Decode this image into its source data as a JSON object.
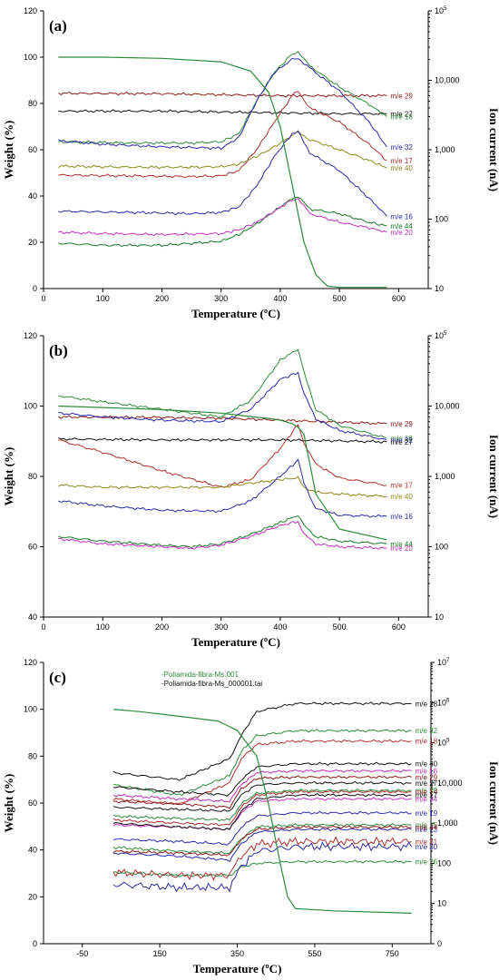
{
  "chart_data": [
    {
      "type": "line",
      "panel_label": "(a)",
      "xlabel": "Temperature (ºC)",
      "ylabel": "Weight (%)",
      "y2label": "Ion current (nA)",
      "xlim": [
        0,
        650
      ],
      "ylim": [
        0,
        120
      ],
      "y2lim": [
        10,
        100000
      ],
      "y2scale": "log",
      "xticks": [
        "0",
        "100",
        "200",
        "300",
        "400",
        "500",
        "600"
      ],
      "yticks": [
        "0",
        "20",
        "40",
        "60",
        "80",
        "100",
        "120"
      ],
      "y2ticks": [
        "10",
        "100",
        "1,000",
        "10,000",
        "10 5"
      ],
      "weight": {
        "color": "#2e8b3a",
        "x": [
          25,
          100,
          200,
          300,
          350,
          380,
          400,
          420,
          440,
          460,
          480,
          500,
          580
        ],
        "y": [
          100,
          100,
          99.5,
          98,
          94,
          85,
          70,
          45,
          20,
          6,
          1,
          0.5,
          0.5
        ]
      },
      "series": [
        {
          "name": "m/e 29",
          "color": "#8b1a1a",
          "x": [
            25,
            200,
            300,
            400,
            500,
            580
          ],
          "y": [
            6500,
            6400,
            6200,
            6000,
            6000,
            6000
          ]
        },
        {
          "name": "m/e 27",
          "color": "#111111",
          "x": [
            25,
            200,
            300,
            400,
            500,
            580
          ],
          "y": [
            3600,
            3600,
            3500,
            3400,
            3300,
            3300
          ]
        },
        {
          "name": "m/e 18",
          "color": "#2e8b3a",
          "x": [
            25,
            150,
            250,
            300,
            330,
            360,
            390,
            420,
            430,
            450,
            500,
            550,
            580
          ],
          "y": [
            1300,
            1250,
            1250,
            1300,
            1700,
            5000,
            13000,
            24000,
            26000,
            16000,
            8000,
            4500,
            3000
          ]
        },
        {
          "name": "m/e 32",
          "color": "#2b2ba8",
          "x": [
            25,
            100,
            200,
            300,
            330,
            360,
            390,
            420,
            430,
            450,
            500,
            550,
            580
          ],
          "y": [
            1350,
            1200,
            1100,
            1050,
            1500,
            5000,
            13000,
            20000,
            21000,
            15000,
            7000,
            2500,
            1100
          ]
        },
        {
          "name": "m/e 17",
          "color": "#b03030",
          "x": [
            25,
            150,
            250,
            300,
            330,
            360,
            390,
            420,
            430,
            450,
            500,
            550,
            580
          ],
          "y": [
            430,
            420,
            410,
            420,
            500,
            1000,
            2500,
            6000,
            7000,
            4000,
            2500,
            1200,
            700
          ]
        },
        {
          "name": "m/e 40",
          "color": "#8a8a1a",
          "x": [
            25,
            150,
            250,
            300,
            330,
            360,
            390,
            420,
            430,
            450,
            500,
            550,
            580
          ],
          "y": [
            580,
            560,
            560,
            570,
            620,
            800,
            1100,
            1600,
            1800,
            1400,
            1000,
            700,
            550
          ]
        },
        {
          "name": "m/e 16",
          "color": "#2b2ba8",
          "x": [
            25,
            150,
            250,
            300,
            330,
            360,
            390,
            420,
            430,
            450,
            500,
            550,
            580
          ],
          "y": [
            130,
            125,
            120,
            125,
            150,
            300,
            800,
            1700,
            1800,
            900,
            500,
            200,
            110
          ]
        },
        {
          "name": "m/e 44",
          "color": "#1a7a2a",
          "x": [
            25,
            100,
            200,
            300,
            330,
            360,
            390,
            420,
            430,
            450,
            500,
            550,
            580
          ],
          "y": [
            45,
            42,
            42,
            48,
            60,
            85,
            130,
            200,
            210,
            140,
            120,
            90,
            80
          ]
        },
        {
          "name": "m/e 20",
          "color": "#c030c0",
          "x": [
            25,
            100,
            200,
            300,
            330,
            360,
            390,
            420,
            430,
            450,
            500,
            550,
            580
          ],
          "y": [
            65,
            62,
            60,
            62,
            70,
            90,
            130,
            190,
            200,
            120,
            90,
            75,
            65
          ]
        }
      ]
    },
    {
      "type": "line",
      "panel_label": "(b)",
      "xlabel": "Temperature (ºC)",
      "ylabel": "Weight (%)",
      "y2label": "Ion current (nA)",
      "xlim": [
        0,
        650
      ],
      "ylim": [
        40,
        120
      ],
      "y2lim": [
        10,
        100000
      ],
      "y2scale": "log",
      "xticks": [
        "0",
        "100",
        "200",
        "300",
        "400",
        "500",
        "600"
      ],
      "yticks": [
        "40",
        "60",
        "80",
        "100",
        "120"
      ],
      "y2ticks": [
        "10",
        "100",
        "1,000",
        "10,000",
        "10 5"
      ],
      "weight": {
        "color": "#2e8b3a",
        "x": [
          25,
          100,
          200,
          300,
          350,
          380,
          400,
          420,
          430,
          440,
          460,
          500,
          580
        ],
        "y": [
          100,
          99.6,
          99,
          98,
          97,
          96.5,
          96,
          95,
          94,
          92,
          75,
          65,
          62
        ]
      },
      "series": [
        {
          "name": "m/e 29",
          "color": "#8b1a1a",
          "x": [
            25,
            200,
            300,
            400,
            500,
            580
          ],
          "y": [
            7000,
            6900,
            6700,
            6300,
            5900,
            5600
          ]
        },
        {
          "name": "m/e 18",
          "color": "#2e8b3a",
          "x": [
            25,
            100,
            200,
            300,
            350,
            400,
            430,
            440,
            460,
            500,
            580
          ],
          "y": [
            14000,
            11500,
            9000,
            7000,
            12000,
            45000,
            65000,
            30000,
            9000,
            5300,
            3500
          ]
        },
        {
          "name": "m/e 32",
          "color": "#2b2ba8",
          "x": [
            25,
            100,
            200,
            300,
            350,
            400,
            430,
            440,
            460,
            500,
            580
          ],
          "y": [
            8000,
            7000,
            6300,
            6000,
            9000,
            24000,
            30000,
            15000,
            6500,
            4500,
            3300
          ]
        },
        {
          "name": "m/e 27",
          "color": "#111111",
          "x": [
            25,
            200,
            300,
            400,
            500,
            580
          ],
          "y": [
            3400,
            3300,
            3300,
            3300,
            3200,
            3100
          ]
        },
        {
          "name": "m/e 17",
          "color": "#b03030",
          "x": [
            25,
            100,
            200,
            300,
            350,
            400,
            430,
            440,
            460,
            500,
            580
          ],
          "y": [
            3300,
            2200,
            1200,
            700,
            900,
            2500,
            5500,
            3000,
            1500,
            950,
            750
          ]
        },
        {
          "name": "m/e 40",
          "color": "#8a8a1a",
          "x": [
            25,
            100,
            200,
            300,
            350,
            400,
            430,
            440,
            460,
            500,
            580
          ],
          "y": [
            750,
            700,
            700,
            700,
            800,
            900,
            950,
            700,
            600,
            560,
            520
          ]
        },
        {
          "name": "m/e 16",
          "color": "#2b2ba8",
          "x": [
            25,
            100,
            200,
            300,
            350,
            400,
            430,
            440,
            460,
            500,
            580
          ],
          "y": [
            450,
            380,
            330,
            320,
            450,
            1000,
            1700,
            800,
            350,
            280,
            270
          ]
        },
        {
          "name": "m/e 44",
          "color": "#1a7a2a",
          "x": [
            25,
            100,
            200,
            250,
            300,
            350,
            400,
            430,
            440,
            460,
            500,
            580
          ],
          "y": [
            140,
            120,
            105,
            100,
            110,
            150,
            220,
            280,
            200,
            140,
            120,
            110
          ]
        },
        {
          "name": "m/e 20",
          "color": "#c030c0",
          "x": [
            25,
            100,
            200,
            250,
            300,
            350,
            400,
            430,
            440,
            460,
            500,
            580
          ],
          "y": [
            130,
            110,
            100,
            95,
            105,
            140,
            200,
            230,
            150,
            110,
            100,
            95
          ]
        }
      ]
    },
    {
      "type": "line",
      "panel_label": "(c)",
      "xlabel": "Temperature (ºC)",
      "ylabel": "Weight (%)",
      "y2label": "Ion current (nA)",
      "xlim": [
        -150,
        850
      ],
      "ylim": [
        0,
        120
      ],
      "y2lim": [
        0,
        10000000
      ],
      "y2scale": "log",
      "xticks": [
        "-50",
        "150",
        "350",
        "550",
        "750"
      ],
      "yticks": [
        "0",
        "20",
        "40",
        "60",
        "80",
        "100",
        "120"
      ],
      "y2ticks": [
        "0",
        "10",
        "100",
        "1,000",
        "10,000",
        "10 5",
        "10 6",
        "10 7"
      ],
      "legend": [
        "-Poliamida-fibra-Ms.001",
        "-Poliamida-fibra-Ms_000001.tai"
      ],
      "weight": {
        "color": "#2e8b3a",
        "x": [
          30,
          100,
          200,
          300,
          350,
          400,
          430,
          460,
          480,
          500,
          600,
          800
        ],
        "y": [
          100,
          99,
          97,
          95,
          91,
          80,
          60,
          35,
          20,
          15,
          14,
          13
        ]
      },
      "series": [
        {
          "name": "m/e 28",
          "color": "#111111",
          "x": [
            30,
            200,
            330,
            360,
            400,
            500,
            800
          ],
          "y": [
            18000,
            12000,
            40000,
            150000,
            600000,
            950000,
            950000
          ]
        },
        {
          "name": "m/e 32",
          "color": "#2e8b3a",
          "x": [
            30,
            200,
            330,
            360,
            400,
            500,
            800
          ],
          "y": [
            9000,
            5000,
            15000,
            60000,
            150000,
            200000,
            200000
          ]
        },
        {
          "name": "m/e 18",
          "color": "#b03030",
          "x": [
            30,
            200,
            330,
            360,
            400,
            500,
            800
          ],
          "y": [
            4000,
            3000,
            10000,
            40000,
            90000,
            110000,
            110000
          ]
        },
        {
          "name": "m/e 40",
          "color": "#111111",
          "x": [
            30,
            200,
            330,
            360,
            400,
            500,
            800
          ],
          "y": [
            8000,
            6000,
            5000,
            12000,
            25000,
            30000,
            30000
          ]
        },
        {
          "name": "m/e 16",
          "color": "#c030c0",
          "x": [
            30,
            200,
            330,
            360,
            400,
            500,
            800
          ],
          "y": [
            5000,
            4000,
            3500,
            9000,
            18000,
            20000,
            20000
          ]
        },
        {
          "name": "m/e 29",
          "color": "#8b1a1a",
          "x": [
            30,
            200,
            330,
            360,
            400,
            500,
            800
          ],
          "y": [
            3500,
            3000,
            2500,
            7000,
            13000,
            14000,
            14000
          ]
        },
        {
          "name": "m/e 27",
          "color": "#111111",
          "x": [
            30,
            200,
            330,
            360,
            400,
            500,
            800
          ],
          "y": [
            2500,
            2200,
            2000,
            5000,
            9000,
            10000,
            10000
          ]
        },
        {
          "name": "m/e 20",
          "color": "#2e8b3a",
          "x": [
            30,
            200,
            330,
            360,
            400,
            500,
            800
          ],
          "y": [
            1500,
            1300,
            1200,
            3000,
            5500,
            6500,
            6500
          ]
        },
        {
          "name": "m/e 34",
          "color": "#c030c0",
          "x": [
            30,
            200,
            330,
            360,
            400,
            500,
            800
          ],
          "y": [
            900,
            800,
            700,
            1800,
            3500,
            4000,
            4000
          ]
        },
        {
          "name": "m/e 19",
          "color": "#2b2ba8",
          "x": [
            30,
            200,
            330,
            360,
            400,
            500,
            800
          ],
          "y": [
            400,
            350,
            300,
            800,
            1500,
            1800,
            1800
          ]
        },
        {
          "name": "m/e 15",
          "color": "#2e8b3a",
          "x": [
            30,
            200,
            330,
            360,
            400,
            500,
            800
          ],
          "y": [
            250,
            200,
            180,
            400,
            800,
            900,
            900
          ]
        },
        {
          "name": "m/e 13",
          "color": "#2b2ba8",
          "x": [
            30,
            200,
            330,
            360,
            400,
            500,
            800
          ],
          "y": [
            180,
            150,
            120,
            300,
            600,
            700,
            700
          ]
        },
        {
          "name": "m/e 26",
          "color": "#2e8b3a",
          "x": [
            30,
            200,
            330,
            360,
            400,
            500,
            800
          ],
          "y": [
            60,
            50,
            50,
            80,
            100,
            110,
            110
          ]
        },
        {
          "name": "m/e 14",
          "color": "#b03030",
          "x": [
            30,
            200,
            330,
            360,
            400,
            500,
            800
          ],
          "y": [
            1200,
            1000,
            900,
            2500,
            5000,
            6000,
            6000
          ]
        },
        {
          "name": "m/e 17",
          "color": "#111111",
          "x": [
            30,
            200,
            330,
            360,
            400,
            500,
            800
          ],
          "y": [
            1000,
            800,
            700,
            2000,
            4000,
            5000,
            5000
          ]
        },
        {
          "name": "m/e 44",
          "color": "#8b1a1a",
          "x": [
            30,
            200,
            330,
            360,
            400,
            500,
            800
          ],
          "y": [
            200,
            180,
            160,
            400,
            700,
            800,
            800
          ]
        },
        {
          "name": "m/e 31",
          "color": "#b03030",
          "x": [
            30,
            200,
            330,
            360,
            400,
            500,
            800
          ],
          "y": [
            60,
            50,
            50,
            150,
            300,
            350,
            350
          ]
        },
        {
          "name": "m/e 30",
          "color": "#2b2ba8",
          "x": [
            30,
            200,
            330,
            360,
            400,
            500,
            800
          ],
          "y": [
            30,
            25,
            25,
            80,
            200,
            260,
            260
          ]
        }
      ]
    }
  ]
}
